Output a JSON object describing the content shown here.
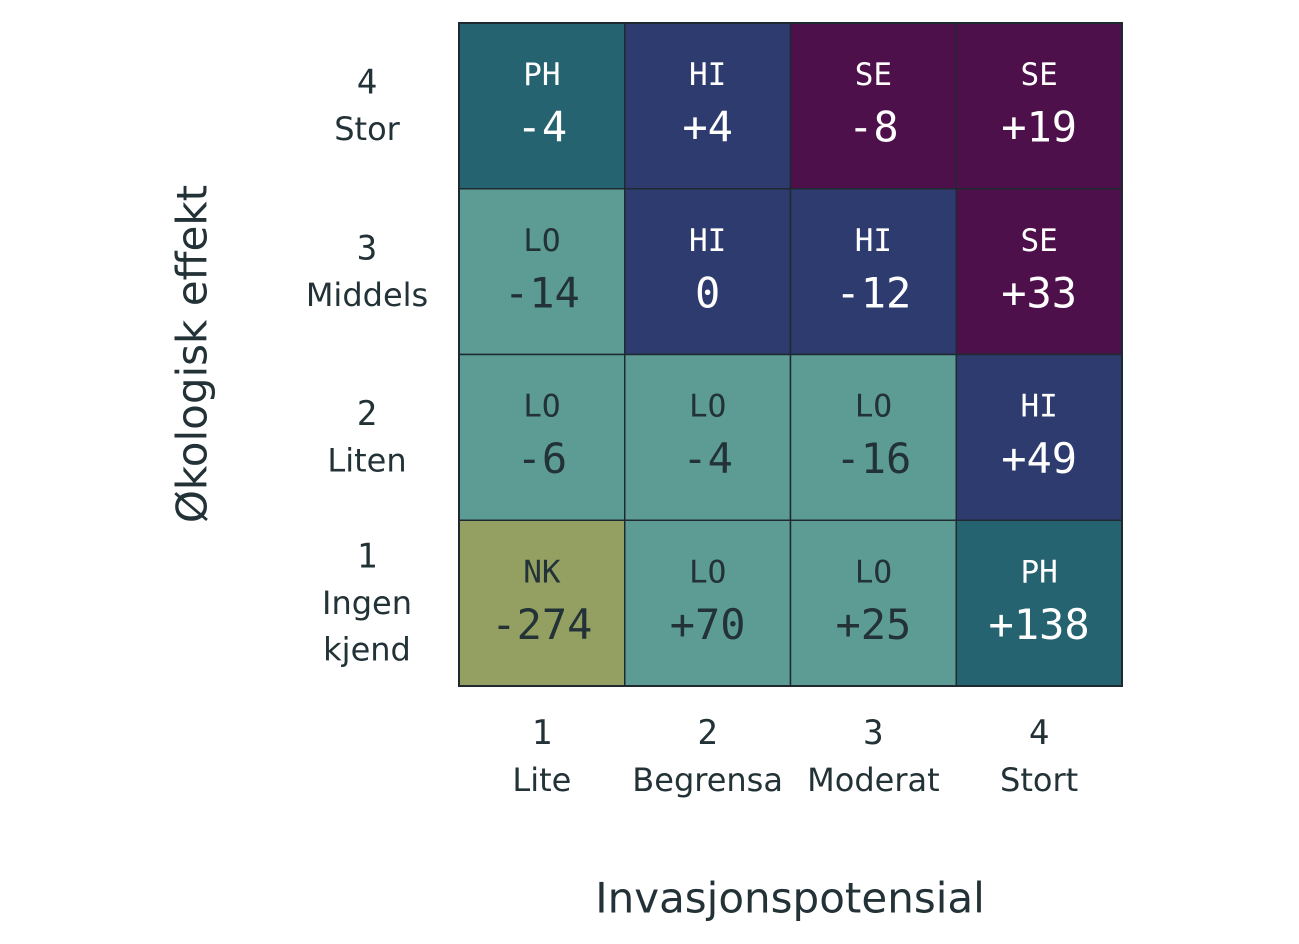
{
  "chart_data": {
    "type": "heatmap",
    "xlabel": "Invasjonspotensial",
    "ylabel": "Økologisk effekt",
    "x_ticks": [
      {
        "num": "1",
        "label": "Lite"
      },
      {
        "num": "2",
        "label": "Begrensa"
      },
      {
        "num": "3",
        "label": "Moderat"
      },
      {
        "num": "4",
        "label": "Stort"
      }
    ],
    "y_ticks": [
      {
        "num": "4",
        "label": [
          "Stor"
        ]
      },
      {
        "num": "3",
        "label": [
          "Middels"
        ]
      },
      {
        "num": "2",
        "label": [
          "Liten"
        ]
      },
      {
        "num": "1",
        "label": [
          "Ingen",
          "kjend"
        ]
      }
    ],
    "cells": [
      {
        "x": 1,
        "y": 4,
        "code": "PH",
        "value": "-4"
      },
      {
        "x": 2,
        "y": 4,
        "code": "HI",
        "value": "+4"
      },
      {
        "x": 3,
        "y": 4,
        "code": "SE",
        "value": "-8"
      },
      {
        "x": 4,
        "y": 4,
        "code": "SE",
        "value": "+19"
      },
      {
        "x": 1,
        "y": 3,
        "code": "LO",
        "value": "-14"
      },
      {
        "x": 2,
        "y": 3,
        "code": "HI",
        "value": "0"
      },
      {
        "x": 3,
        "y": 3,
        "code": "HI",
        "value": "-12"
      },
      {
        "x": 4,
        "y": 3,
        "code": "SE",
        "value": "+33"
      },
      {
        "x": 1,
        "y": 2,
        "code": "LO",
        "value": "-6"
      },
      {
        "x": 2,
        "y": 2,
        "code": "LO",
        "value": "-4"
      },
      {
        "x": 3,
        "y": 2,
        "code": "LO",
        "value": "-16"
      },
      {
        "x": 4,
        "y": 2,
        "code": "HI",
        "value": "+49"
      },
      {
        "x": 1,
        "y": 1,
        "code": "NK",
        "value": "-274"
      },
      {
        "x": 2,
        "y": 1,
        "code": "LO",
        "value": "+70"
      },
      {
        "x": 3,
        "y": 1,
        "code": "LO",
        "value": "+25"
      },
      {
        "x": 4,
        "y": 1,
        "code": "PH",
        "value": "+138"
      }
    ],
    "category_colors": {
      "NK": "#93A062",
      "LO": "#5C9C94",
      "PH": "#266370",
      "HI": "#2D3B6E",
      "SE": "#4D104B"
    },
    "text_colors": {
      "dark": "#233237",
      "light": "#ffffff"
    },
    "border_color": "#1f2a30"
  }
}
